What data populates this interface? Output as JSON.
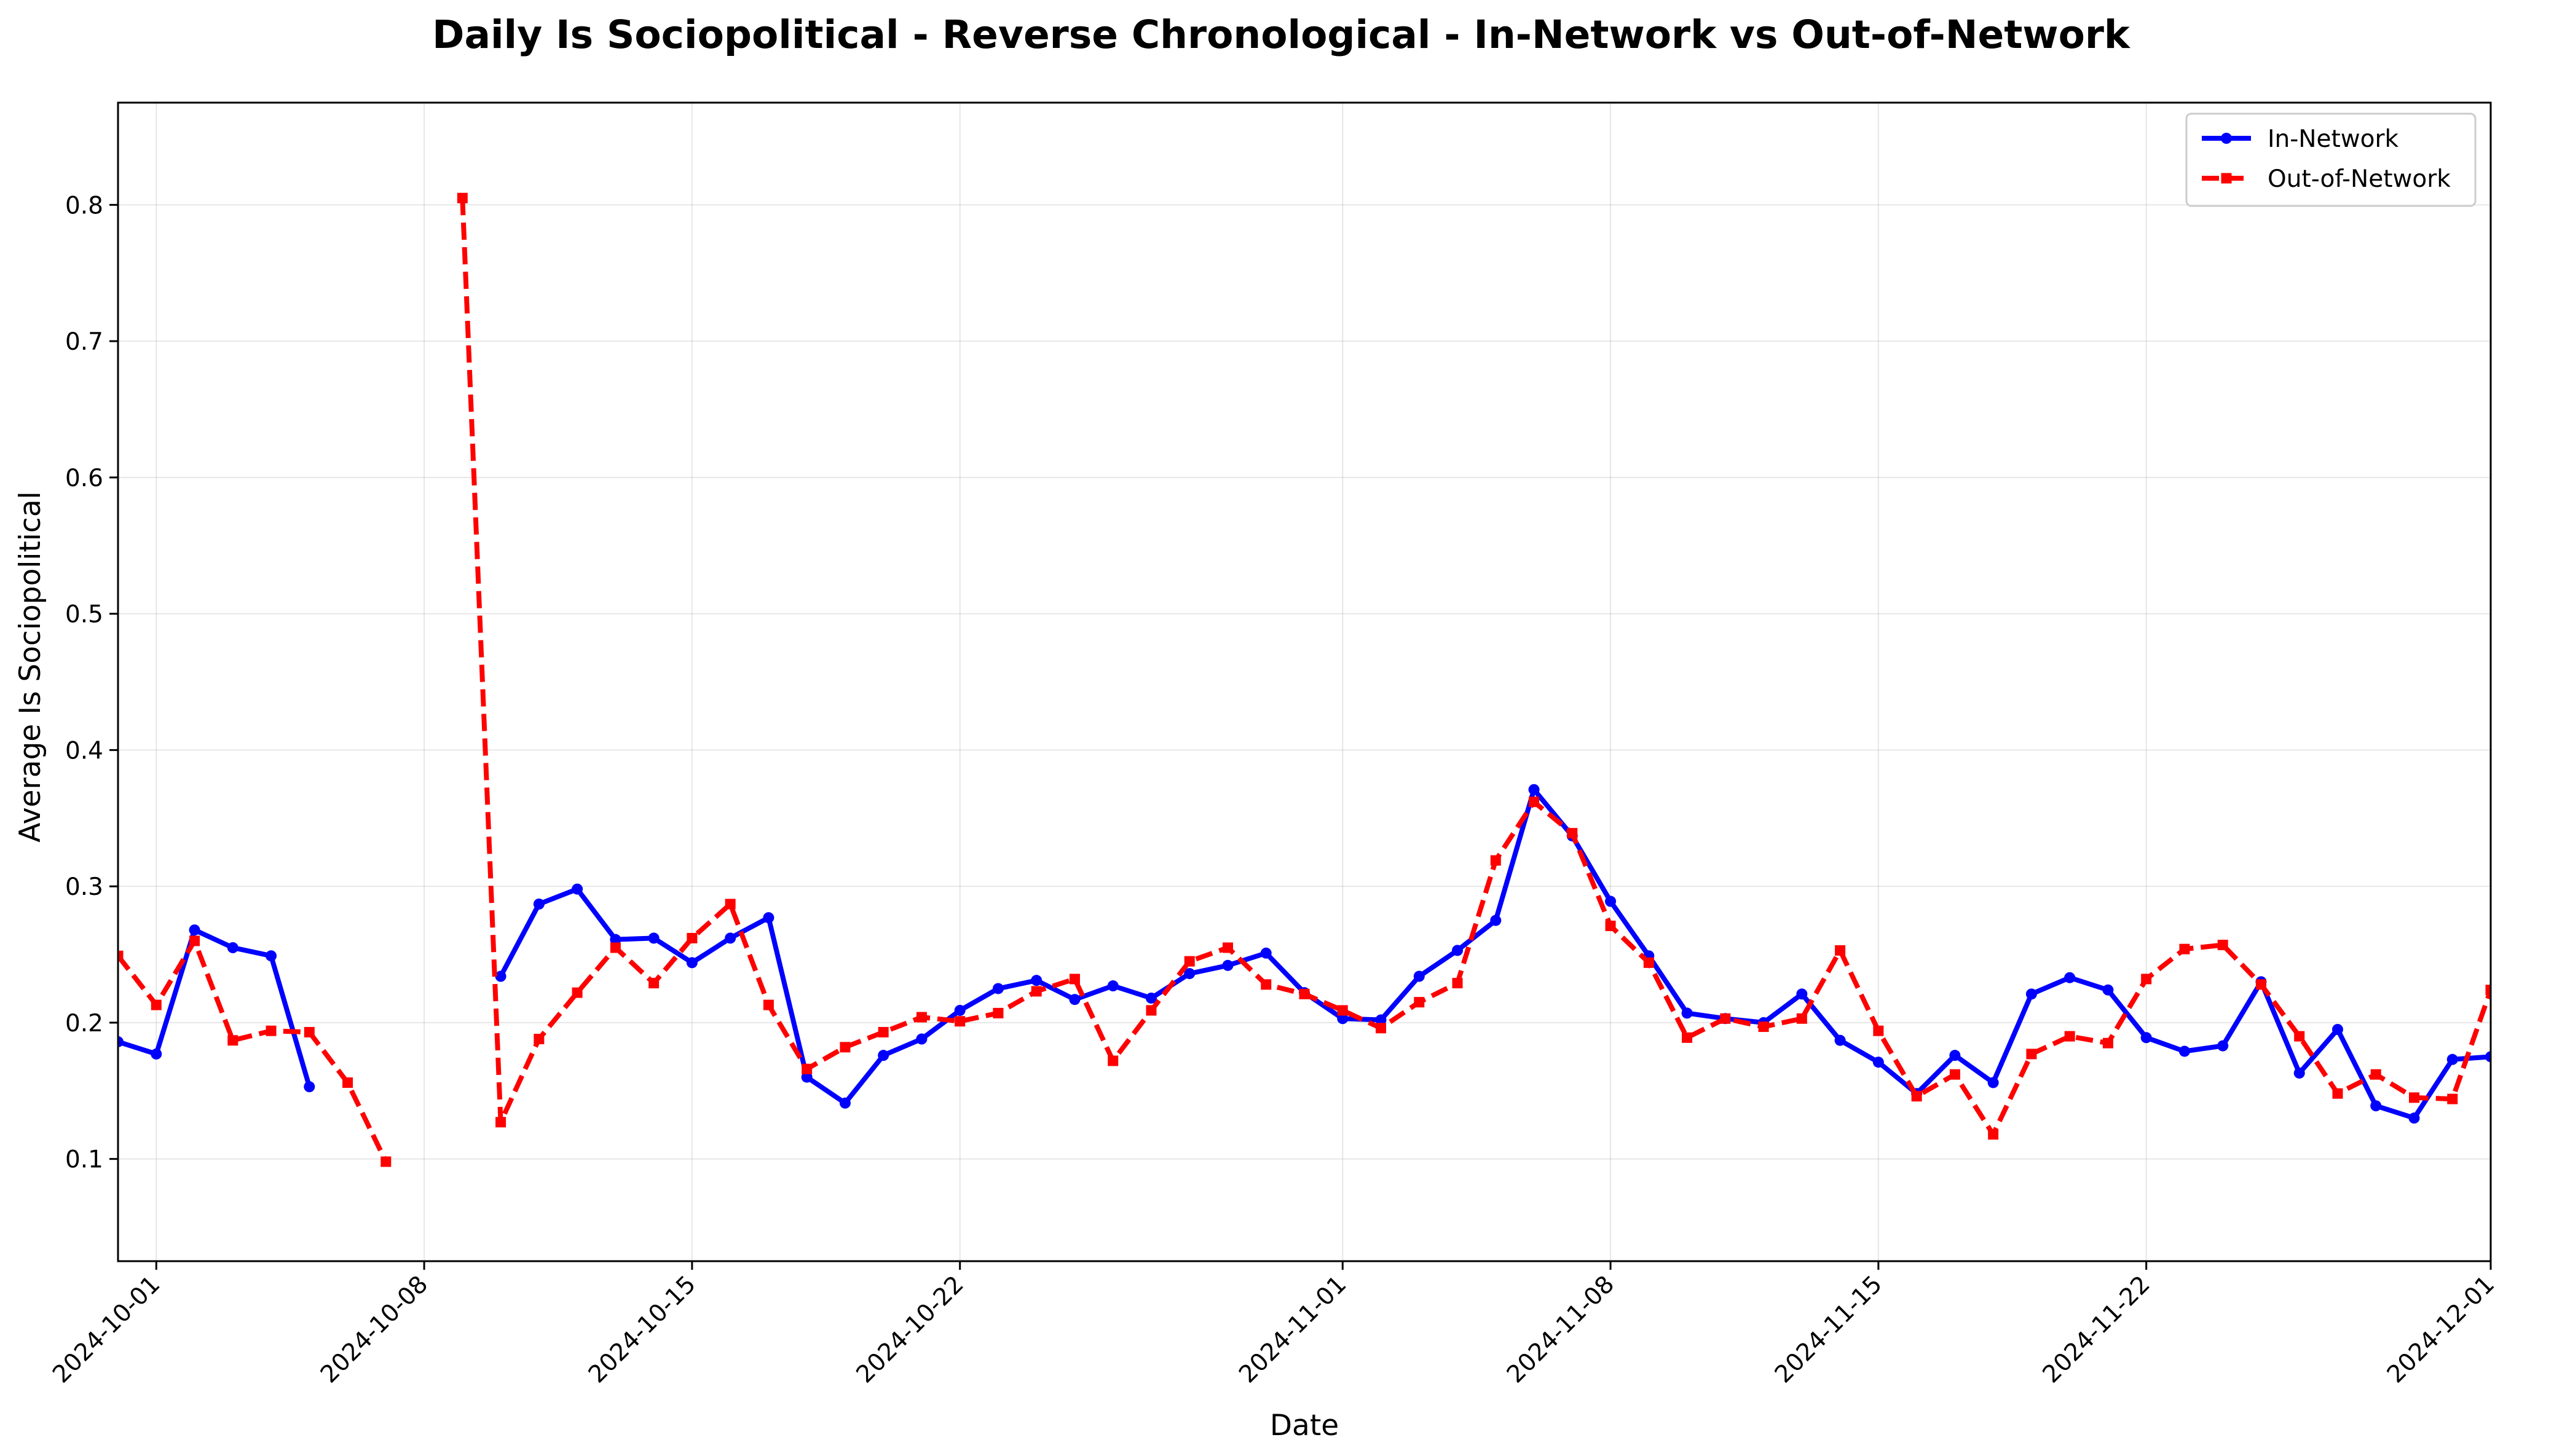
{
  "chart_data": {
    "type": "line",
    "title": "Daily Is Sociopolitical - Reverse Chronological - In-Network vs Out-of-Network",
    "xlabel": "Date",
    "ylabel": "Average Is Sociopolitical",
    "xlim": [
      "2024-09-30",
      "2024-12-01"
    ],
    "ylim": [
      0.025,
      0.875
    ],
    "x_ticks": [
      "2024-10-01",
      "2024-10-08",
      "2024-10-15",
      "2024-10-22",
      "2024-11-01",
      "2024-11-08",
      "2024-11-15",
      "2024-11-22",
      "2024-12-01"
    ],
    "y_ticks": [
      0.1,
      0.2,
      0.3,
      0.4,
      0.5,
      0.6,
      0.7,
      0.8
    ],
    "grid": true,
    "legend_position": "top-right",
    "series": [
      {
        "name": "In-Network",
        "color": "#0000ff",
        "style": "solid",
        "marker": "circle",
        "points": [
          [
            "2024-09-30",
            0.186
          ],
          [
            "2024-10-01",
            0.177
          ],
          [
            "2024-10-02",
            0.268
          ],
          [
            "2024-10-03",
            0.255
          ],
          [
            "2024-10-04",
            0.249
          ],
          [
            "2024-10-05",
            0.153
          ],
          [
            "2024-10-10",
            0.234
          ],
          [
            "2024-10-11",
            0.287
          ],
          [
            "2024-10-12",
            0.298
          ],
          [
            "2024-10-13",
            0.261
          ],
          [
            "2024-10-14",
            0.262
          ],
          [
            "2024-10-15",
            0.244
          ],
          [
            "2024-10-16",
            0.262
          ],
          [
            "2024-10-17",
            0.277
          ],
          [
            "2024-10-18",
            0.16
          ],
          [
            "2024-10-19",
            0.141
          ],
          [
            "2024-10-20",
            0.176
          ],
          [
            "2024-10-21",
            0.188
          ],
          [
            "2024-10-22",
            0.209
          ],
          [
            "2024-10-23",
            0.225
          ],
          [
            "2024-10-24",
            0.231
          ],
          [
            "2024-10-25",
            0.217
          ],
          [
            "2024-10-26",
            0.227
          ],
          [
            "2024-10-27",
            0.218
          ],
          [
            "2024-10-28",
            0.236
          ],
          [
            "2024-10-29",
            0.242
          ],
          [
            "2024-10-30",
            0.251
          ],
          [
            "2024-10-31",
            0.222
          ],
          [
            "2024-11-01",
            0.203
          ],
          [
            "2024-11-02",
            0.202
          ],
          [
            "2024-11-03",
            0.234
          ],
          [
            "2024-11-04",
            0.253
          ],
          [
            "2024-11-05",
            0.275
          ],
          [
            "2024-11-06",
            0.371
          ],
          [
            "2024-11-07",
            0.337
          ],
          [
            "2024-11-08",
            0.289
          ],
          [
            "2024-11-09",
            0.249
          ],
          [
            "2024-11-10",
            0.207
          ],
          [
            "2024-11-11",
            0.203
          ],
          [
            "2024-11-12",
            0.2
          ],
          [
            "2024-11-13",
            0.221
          ],
          [
            "2024-11-14",
            0.187
          ],
          [
            "2024-11-15",
            0.171
          ],
          [
            "2024-11-16",
            0.148
          ],
          [
            "2024-11-17",
            0.176
          ],
          [
            "2024-11-18",
            0.156
          ],
          [
            "2024-11-19",
            0.221
          ],
          [
            "2024-11-20",
            0.233
          ],
          [
            "2024-11-21",
            0.224
          ],
          [
            "2024-11-22",
            0.189
          ],
          [
            "2024-11-23",
            0.179
          ],
          [
            "2024-11-24",
            0.183
          ],
          [
            "2024-11-25",
            0.23
          ],
          [
            "2024-11-26",
            0.163
          ],
          [
            "2024-11-27",
            0.195
          ],
          [
            "2024-11-28",
            0.139
          ],
          [
            "2024-11-29",
            0.13
          ],
          [
            "2024-11-30",
            0.173
          ],
          [
            "2024-12-01",
            0.175
          ]
        ]
      },
      {
        "name": "Out-of-Network",
        "color": "#ff0000",
        "style": "dashed",
        "marker": "square",
        "points": [
          [
            "2024-09-30",
            0.249
          ],
          [
            "2024-10-01",
            0.213
          ],
          [
            "2024-10-02",
            0.26
          ],
          [
            "2024-10-03",
            0.187
          ],
          [
            "2024-10-04",
            0.194
          ],
          [
            "2024-10-05",
            0.193
          ],
          [
            "2024-10-06",
            0.156
          ],
          [
            "2024-10-07",
            0.098
          ],
          [
            "2024-10-09",
            0.805
          ],
          [
            "2024-10-10",
            0.127
          ],
          [
            "2024-10-11",
            0.188
          ],
          [
            "2024-10-12",
            0.222
          ],
          [
            "2024-10-13",
            0.255
          ],
          [
            "2024-10-14",
            0.229
          ],
          [
            "2024-10-15",
            0.262
          ],
          [
            "2024-10-16",
            0.287
          ],
          [
            "2024-10-17",
            0.213
          ],
          [
            "2024-10-18",
            0.166
          ],
          [
            "2024-10-19",
            0.182
          ],
          [
            "2024-10-20",
            0.193
          ],
          [
            "2024-10-21",
            0.204
          ],
          [
            "2024-10-22",
            0.201
          ],
          [
            "2024-10-23",
            0.207
          ],
          [
            "2024-10-24",
            0.223
          ],
          [
            "2024-10-25",
            0.232
          ],
          [
            "2024-10-26",
            0.172
          ],
          [
            "2024-10-27",
            0.209
          ],
          [
            "2024-10-28",
            0.245
          ],
          [
            "2024-10-29",
            0.255
          ],
          [
            "2024-10-30",
            0.228
          ],
          [
            "2024-10-31",
            0.221
          ],
          [
            "2024-11-01",
            0.209
          ],
          [
            "2024-11-02",
            0.196
          ],
          [
            "2024-11-03",
            0.215
          ],
          [
            "2024-11-04",
            0.229
          ],
          [
            "2024-11-05",
            0.319
          ],
          [
            "2024-11-06",
            0.362
          ],
          [
            "2024-11-07",
            0.339
          ],
          [
            "2024-11-08",
            0.271
          ],
          [
            "2024-11-09",
            0.244
          ],
          [
            "2024-11-10",
            0.189
          ],
          [
            "2024-11-11",
            0.203
          ],
          [
            "2024-11-12",
            0.197
          ],
          [
            "2024-11-13",
            0.203
          ],
          [
            "2024-11-14",
            0.253
          ],
          [
            "2024-11-15",
            0.194
          ],
          [
            "2024-11-16",
            0.146
          ],
          [
            "2024-11-17",
            0.162
          ],
          [
            "2024-11-18",
            0.118
          ],
          [
            "2024-11-19",
            0.177
          ],
          [
            "2024-11-20",
            0.19
          ],
          [
            "2024-11-21",
            0.185
          ],
          [
            "2024-11-22",
            0.232
          ],
          [
            "2024-11-23",
            0.254
          ],
          [
            "2024-11-24",
            0.257
          ],
          [
            "2024-11-25",
            0.228
          ],
          [
            "2024-11-26",
            0.19
          ],
          [
            "2024-11-27",
            0.148
          ],
          [
            "2024-11-28",
            0.162
          ],
          [
            "2024-11-29",
            0.145
          ],
          [
            "2024-11-30",
            0.144
          ],
          [
            "2024-12-01",
            0.224
          ]
        ]
      }
    ]
  }
}
